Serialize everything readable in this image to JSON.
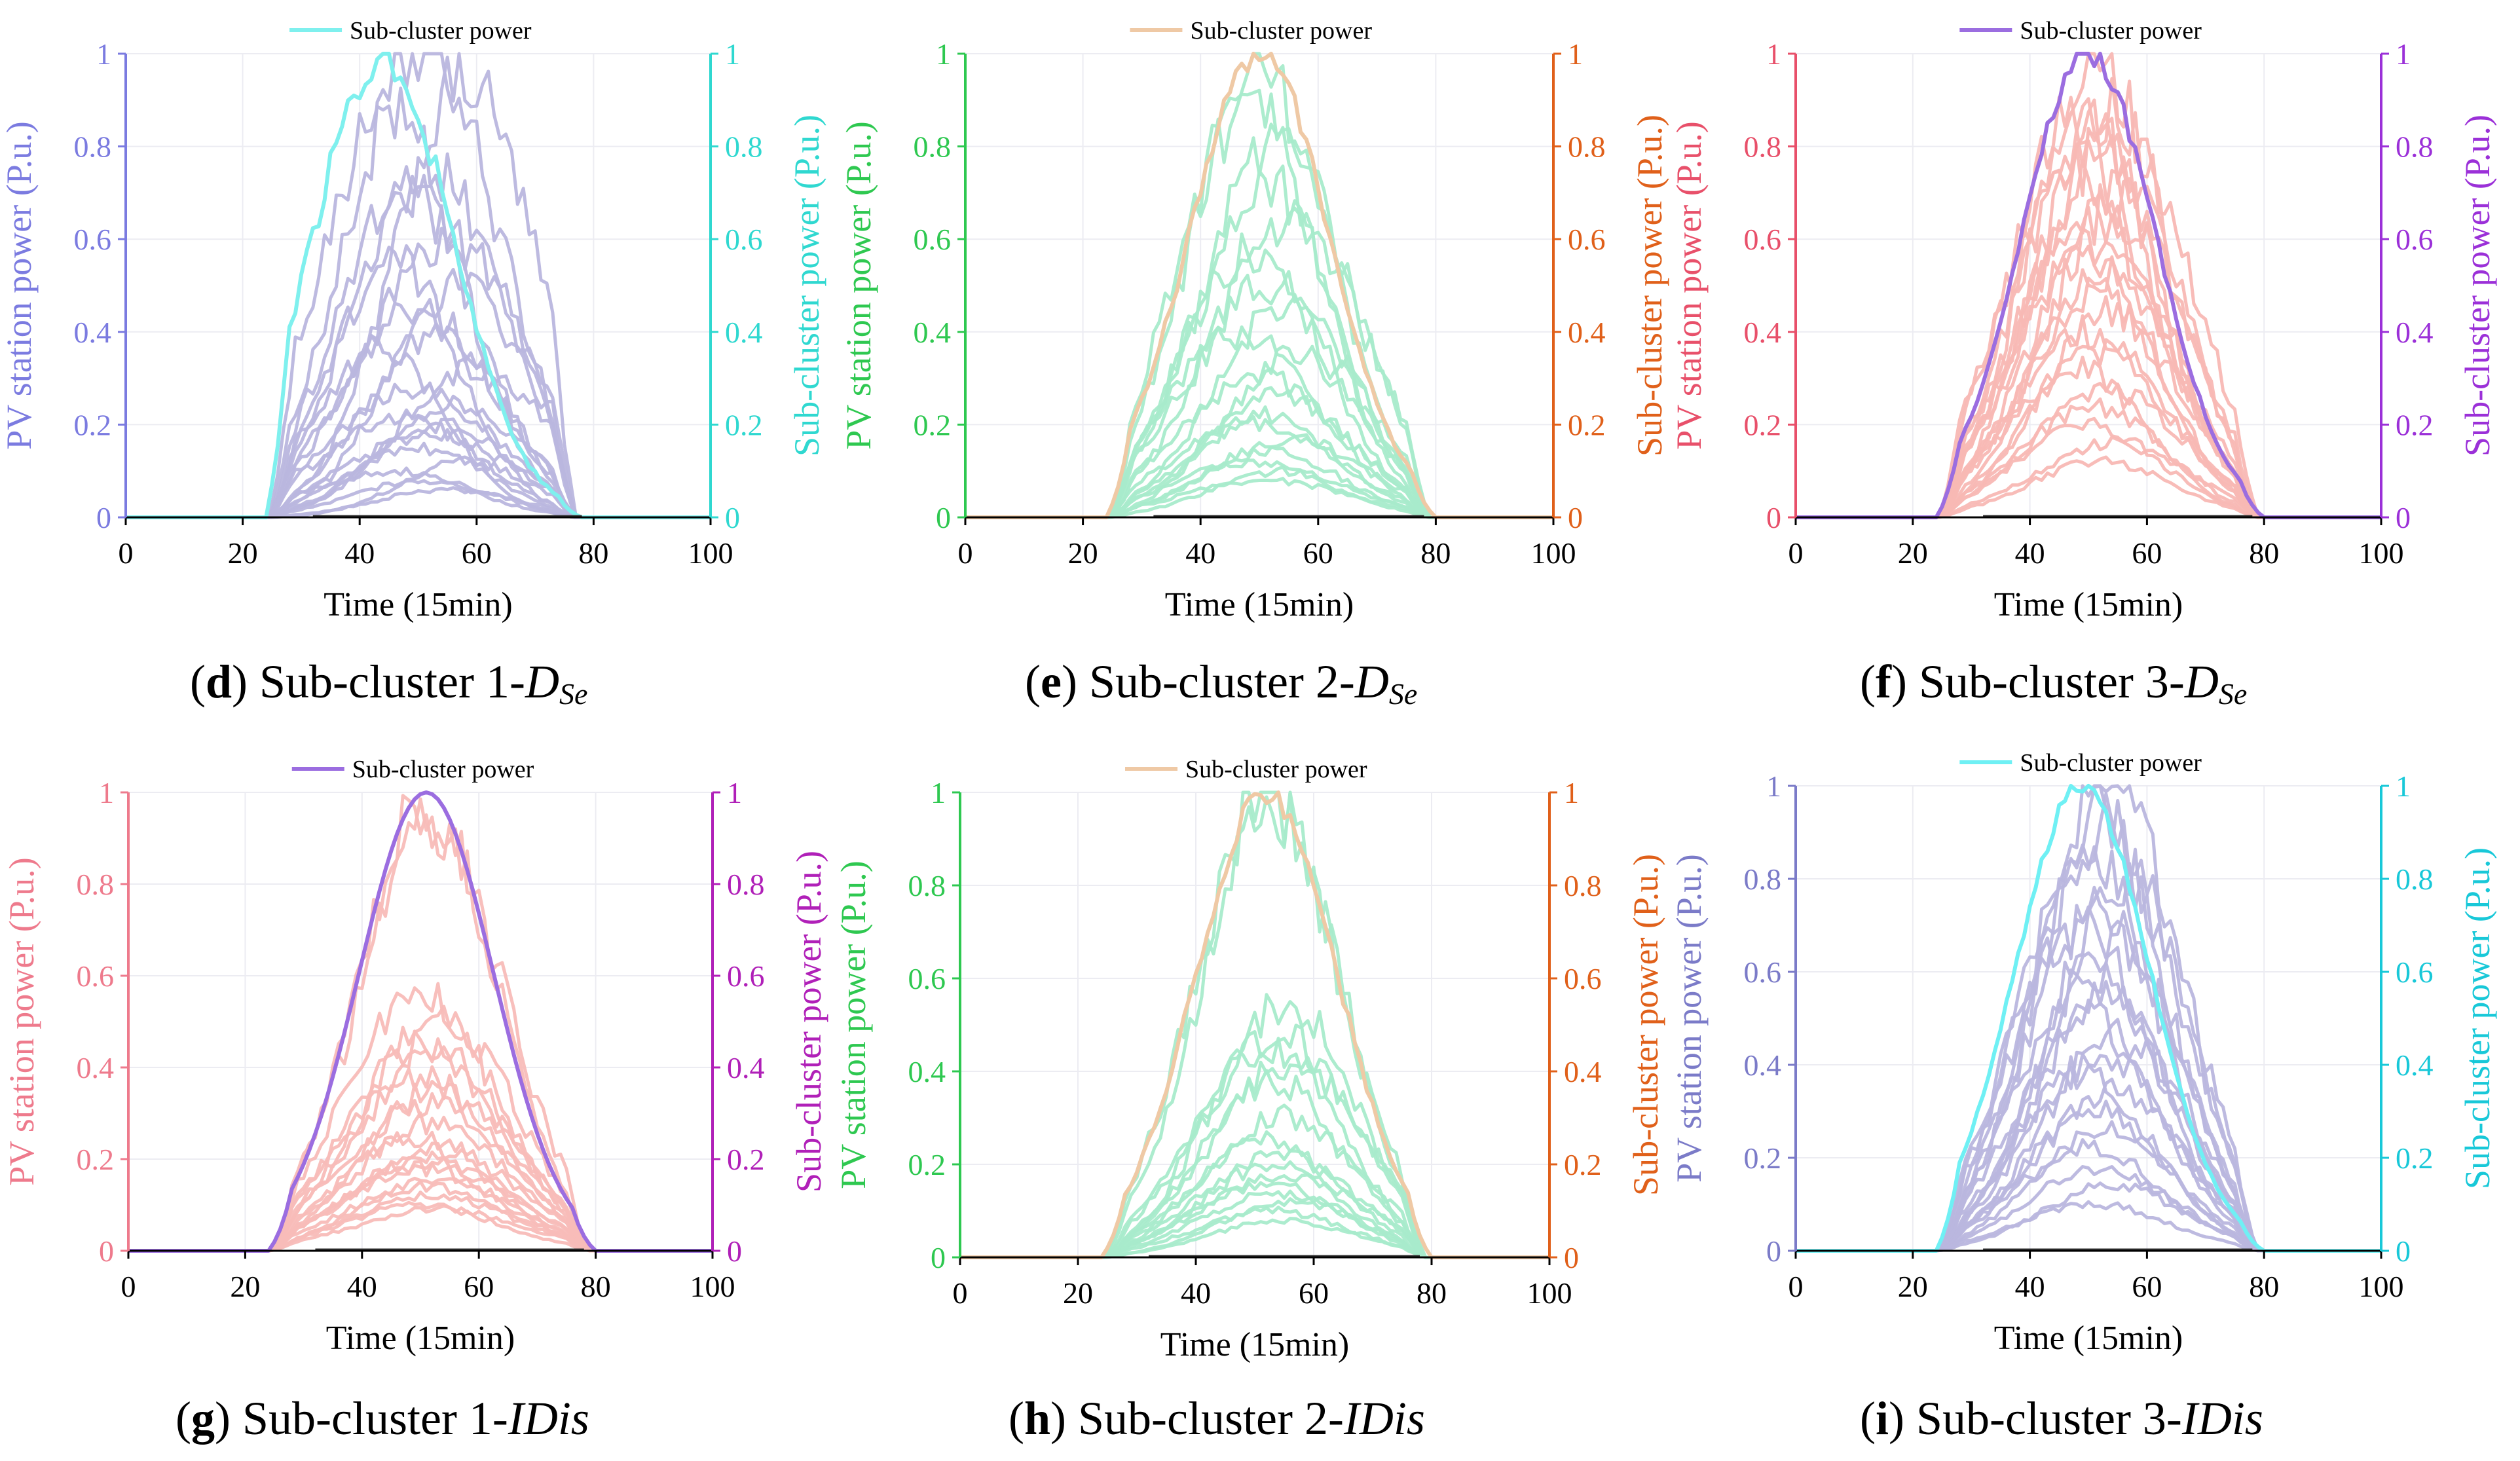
{
  "chart_data": [
    {
      "panel": "d",
      "caption_prefix": "Sub-cluster 1-",
      "caption_var": "D",
      "caption_sub": "Se",
      "type": "line",
      "xlabel": "Time (15min)",
      "ylabel_left": "PV station power (P.u.)",
      "ylabel_right": "Sub-cluster power (P.u.)",
      "legend": "Sub-cluster power",
      "xlim": [
        0,
        100
      ],
      "ylim": [
        0,
        1
      ],
      "xticks": [
        "0",
        "20",
        "40",
        "60",
        "80",
        "100"
      ],
      "yticks": [
        "0",
        "0.2",
        "0.4",
        "0.6",
        "0.8",
        "1"
      ],
      "colors": {
        "left": "#7B7BE0",
        "right": "#2FD8D0",
        "stations": "#B9B6DE",
        "cluster": "#7FF0EE"
      },
      "station_peaks": [
        1.0,
        0.94,
        0.88,
        0.75,
        0.7,
        0.6,
        0.55,
        0.5,
        0.45,
        0.4,
        0.36,
        0.32,
        0.28,
        0.25,
        0.22,
        0.2,
        0.18,
        0.15,
        0.12,
        0.1,
        0.08,
        0.06
      ],
      "station_centers": [
        51,
        58,
        45,
        52,
        48,
        55,
        46,
        57,
        50,
        53,
        44,
        60,
        49,
        56,
        47,
        54,
        52,
        50,
        58,
        45,
        51,
        55
      ],
      "station_widths": [
        13,
        12,
        12,
        13,
        12,
        14,
        11,
        12,
        13,
        12,
        11,
        13,
        14,
        12,
        13,
        12,
        14,
        12,
        11,
        13,
        12,
        12
      ],
      "cluster": {
        "start": 24,
        "end": 78,
        "center": 44,
        "width": 12,
        "peak": 1.0,
        "noise": 0.05
      }
    },
    {
      "panel": "e",
      "caption_prefix": "Sub-cluster 2-",
      "caption_var": "D",
      "caption_sub": "Se",
      "type": "line",
      "xlabel": "Time (15min)",
      "ylabel_left": "PV station power (P.u.)",
      "ylabel_right": "Sub-cluster power (P.u.)",
      "legend": "Sub-cluster power",
      "xlim": [
        0,
        100
      ],
      "ylim": [
        0,
        1
      ],
      "xticks": [
        "0",
        "20",
        "40",
        "60",
        "80",
        "100"
      ],
      "yticks": [
        "0",
        "0.2",
        "0.4",
        "0.6",
        "0.8",
        "1"
      ],
      "colors": {
        "left": "#2EC850",
        "right": "#E0601A",
        "stations": "#A8EBCB",
        "cluster": "#EFC9A5"
      },
      "station_peaks": [
        0.95,
        0.9,
        0.8,
        0.72,
        0.65,
        0.58,
        0.5,
        0.45,
        0.4,
        0.35,
        0.3,
        0.26,
        0.22,
        0.2,
        0.17,
        0.14,
        0.12,
        0.1,
        0.08
      ],
      "station_centers": [
        50,
        48,
        53,
        51,
        55,
        49,
        52,
        54,
        47,
        56,
        50,
        53,
        51,
        49,
        55,
        52,
        48,
        54,
        51
      ],
      "station_widths": [
        12,
        12,
        13,
        12,
        13,
        12,
        14,
        12,
        13,
        12,
        14,
        13,
        12,
        14,
        13,
        12,
        13,
        12,
        14
      ],
      "cluster": {
        "start": 24,
        "end": 80,
        "center": 50,
        "width": 12,
        "peak": 1.0,
        "noise": 0.04
      }
    },
    {
      "panel": "f",
      "caption_prefix": "Sub-cluster 3-",
      "caption_var": "D",
      "caption_sub": "Se",
      "type": "line",
      "xlabel": "Time (15min)",
      "ylabel_left": "PV station power (P.u.)",
      "ylabel_right": "Sub-cluster power (P.u.)",
      "legend": "Sub-cluster power",
      "xlim": [
        0,
        100
      ],
      "ylim": [
        0,
        1
      ],
      "xticks": [
        "0",
        "20",
        "40",
        "60",
        "80",
        "100"
      ],
      "yticks": [
        "0",
        "0.2",
        "0.4",
        "0.6",
        "0.8",
        "1"
      ],
      "colors": {
        "left": "#E8506A",
        "right": "#9B30D8",
        "stations": "#F8B8B4",
        "cluster": "#9B6DE0"
      },
      "station_peaks": [
        0.95,
        0.9,
        0.87,
        0.83,
        0.8,
        0.76,
        0.72,
        0.68,
        0.64,
        0.6,
        0.56,
        0.52,
        0.48,
        0.44,
        0.4,
        0.36,
        0.32,
        0.28,
        0.24,
        0.2,
        0.16,
        0.12
      ],
      "station_centers": [
        52,
        49,
        54,
        50,
        53,
        48,
        51,
        55,
        50,
        52,
        49,
        53,
        51,
        54,
        50,
        52,
        48,
        53,
        51,
        50,
        54,
        52
      ],
      "station_widths": [
        12,
        12,
        13,
        12,
        12,
        13,
        12,
        12,
        13,
        12,
        12,
        13,
        12,
        12,
        13,
        12,
        12,
        13,
        12,
        12,
        13,
        12
      ],
      "cluster": {
        "start": 24,
        "end": 80,
        "center": 50,
        "width": 11.5,
        "peak": 1.0,
        "noise": 0.025
      }
    },
    {
      "panel": "g",
      "caption_prefix": "Sub-cluster 1-",
      "caption_var": "IDis",
      "caption_sub": "",
      "type": "line",
      "xlabel": "Time (15min)",
      "ylabel_left": "PV station power (P.u.)",
      "ylabel_right": "Sub-cluster power (P.u.)",
      "legend": "Sub-cluster power",
      "xlim": [
        0,
        100
      ],
      "ylim": [
        0,
        1
      ],
      "xticks": [
        "0",
        "20",
        "40",
        "60",
        "80",
        "100"
      ],
      "yticks": [
        "0",
        "0.2",
        "0.4",
        "0.6",
        "0.8",
        "1"
      ],
      "colors": {
        "left": "#EE7A8C",
        "right": "#B020B8",
        "stations": "#F8BCB8",
        "cluster": "#9B6DE0"
      },
      "station_peaks": [
        0.97,
        0.92,
        0.56,
        0.52,
        0.45,
        0.42,
        0.38,
        0.35,
        0.32,
        0.28,
        0.25,
        0.22,
        0.2,
        0.19,
        0.18,
        0.16,
        0.14,
        0.12,
        0.1,
        0.09
      ],
      "station_centers": [
        51,
        52,
        50,
        53,
        51,
        52,
        50,
        53,
        51,
        52,
        50,
        53,
        51,
        52,
        50,
        53,
        51,
        52,
        50,
        53
      ],
      "station_widths": [
        12,
        12.5,
        13,
        13,
        13.5,
        13,
        13.5,
        13,
        14,
        13,
        13.5,
        14,
        13,
        14,
        13.5,
        13,
        14,
        13.5,
        13,
        14
      ],
      "cluster": {
        "start": 24,
        "end": 80,
        "center": 51,
        "width": 11.5,
        "peak": 1.0,
        "noise": 0.0
      }
    },
    {
      "panel": "h",
      "caption_prefix": "Sub-cluster 2-",
      "caption_var": "IDis",
      "caption_sub": "",
      "type": "line",
      "xlabel": "Time (15min)",
      "ylabel_left": "PV station power (P.u.)",
      "ylabel_right": "Sub-cluster power (P.u.)",
      "legend": "Sub-cluster power",
      "xlim": [
        0,
        100
      ],
      "ylim": [
        0,
        1
      ],
      "xticks": [
        "0",
        "20",
        "40",
        "60",
        "80",
        "100"
      ],
      "yticks": [
        "0",
        "0.2",
        "0.4",
        "0.6",
        "0.8",
        "1"
      ],
      "colors": {
        "left": "#2EC850",
        "right": "#E0601A",
        "stations": "#A8EBCB",
        "cluster": "#EFC9A5"
      },
      "station_peaks": [
        1.0,
        0.97,
        0.55,
        0.48,
        0.45,
        0.42,
        0.38,
        0.3,
        0.25,
        0.22,
        0.2,
        0.18,
        0.16,
        0.14,
        0.12,
        0.1,
        0.08
      ],
      "station_centers": [
        52,
        53,
        55,
        54,
        52,
        56,
        53,
        55,
        52,
        54,
        53,
        55,
        52,
        54,
        56,
        53,
        55
      ],
      "station_widths": [
        12,
        12,
        12,
        13,
        12.5,
        13,
        12,
        13,
        12.5,
        13,
        12,
        13.5,
        12.5,
        13,
        12,
        13,
        12.5
      ],
      "cluster": {
        "start": 24,
        "end": 80,
        "center": 52,
        "width": 12,
        "peak": 1.0,
        "noise": 0.03
      }
    },
    {
      "panel": "i",
      "caption_prefix": "Sub-cluster 3-",
      "caption_var": "IDis",
      "caption_sub": "",
      "type": "line",
      "xlabel": "Time (15min)",
      "ylabel_left": "PV station power (P.u.)",
      "ylabel_right": "Sub-cluster power (P.u.)",
      "legend": "Sub-cluster power",
      "xlim": [
        0,
        100
      ],
      "ylim": [
        0,
        1
      ],
      "xticks": [
        "0",
        "20",
        "40",
        "60",
        "80",
        "100"
      ],
      "yticks": [
        "0",
        "0.2",
        "0.4",
        "0.6",
        "0.8",
        "1"
      ],
      "colors": {
        "left": "#7B7BC8",
        "right": "#18C8D8",
        "stations": "#B9B6DE",
        "cluster": "#6FF0F4"
      },
      "station_peaks": [
        1.0,
        0.95,
        0.92,
        0.85,
        0.78,
        0.74,
        0.7,
        0.66,
        0.6,
        0.55,
        0.5,
        0.46,
        0.42,
        0.38,
        0.34,
        0.3,
        0.26,
        0.22,
        0.18,
        0.14,
        0.1
      ],
      "station_centers": [
        54,
        51,
        53,
        50,
        55,
        52,
        49,
        54,
        51,
        53,
        50,
        55,
        52,
        49,
        54,
        51,
        53,
        50,
        52,
        54,
        51
      ],
      "station_widths": [
        12,
        12,
        12.5,
        12,
        12,
        12.5,
        12,
        12,
        12.5,
        12,
        12,
        12.5,
        12,
        12,
        12.5,
        12,
        12,
        12.5,
        12,
        12,
        12.5
      ],
      "cluster": {
        "start": 24,
        "end": 80,
        "center": 49,
        "width": 11.5,
        "peak": 1.0,
        "noise": 0.02
      }
    }
  ]
}
